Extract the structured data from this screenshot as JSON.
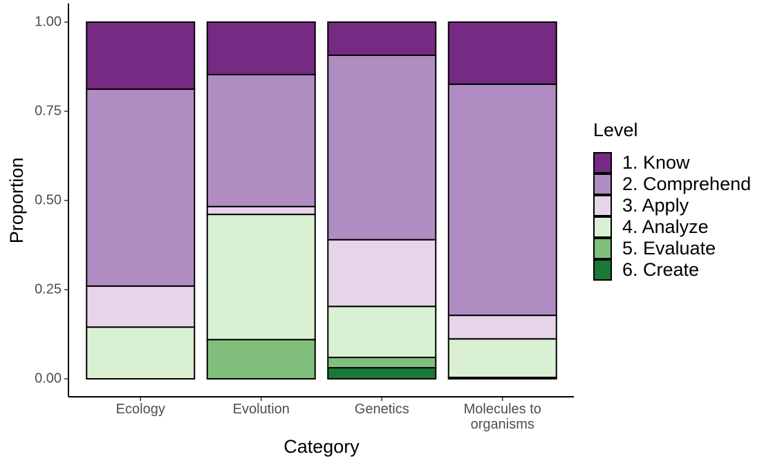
{
  "chart_data": {
    "type": "stacked_bar",
    "x_label": "Category",
    "y_label": "Proportion",
    "legend_title": "Level",
    "categories": [
      "Ecology",
      "Evolution",
      "Genetics",
      "Molecules to organisms"
    ],
    "series": [
      {
        "name": "1. Know",
        "color": "#762a83",
        "values": [
          0.188,
          0.147,
          0.093,
          0.174
        ]
      },
      {
        "name": "2. Comprehend",
        "color": "#af8dc3",
        "values": [
          0.552,
          0.37,
          0.517,
          0.648
        ]
      },
      {
        "name": "3. Apply",
        "color": "#e7d4e8",
        "values": [
          0.115,
          0.022,
          0.187,
          0.066
        ]
      },
      {
        "name": "4. Analyze",
        "color": "#d9f0d3",
        "values": [
          0.145,
          0.351,
          0.143,
          0.108
        ]
      },
      {
        "name": "5. Evaluate",
        "color": "#7fbf7b",
        "values": [
          0,
          0.11,
          0.029,
          0
        ]
      },
      {
        "name": "6. Create",
        "color": "#1b7837",
        "values": [
          0,
          0,
          0.031,
          0.004
        ]
      }
    ],
    "ylim": [
      0,
      1
    ],
    "yticks": [
      {
        "value": 0,
        "label": "0.00"
      },
      {
        "value": 0.25,
        "label": "0.25"
      },
      {
        "value": 0.5,
        "label": "0.50"
      },
      {
        "value": 0.75,
        "label": "0.75"
      },
      {
        "value": 1,
        "label": "1.00"
      }
    ],
    "legend_position": "right",
    "grid": false
  }
}
